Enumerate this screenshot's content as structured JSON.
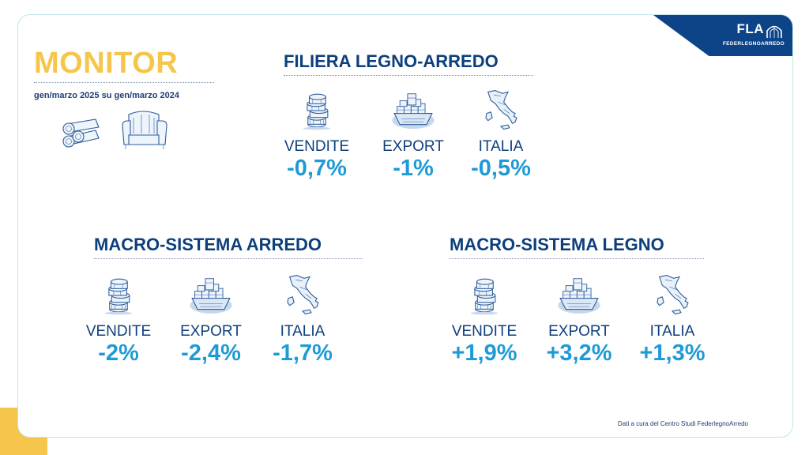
{
  "header": {
    "title": "MONITOR",
    "subtitle": "gen/marzo 2025 su gen/marzo 2024"
  },
  "logo": {
    "mark": "FLA",
    "name": "FEDERLEGNOARREDO"
  },
  "sections": [
    {
      "title": "FILIERA LEGNO-ARREDO",
      "metrics": [
        {
          "label": "VENDITE",
          "value": "-0,7%",
          "icon": "coins-stack-icon"
        },
        {
          "label": "EXPORT",
          "value": "-1%",
          "icon": "cargo-ship-icon"
        },
        {
          "label": "ITALIA",
          "value": "-0,5%",
          "icon": "italy-map-icon"
        }
      ]
    },
    {
      "title": "MACRO-SISTEMA ARREDO",
      "metrics": [
        {
          "label": "VENDITE",
          "value": "-2%",
          "icon": "coins-stack-icon"
        },
        {
          "label": "EXPORT",
          "value": "-2,4%",
          "icon": "cargo-ship-icon"
        },
        {
          "label": "ITALIA",
          "value": "-1,7%",
          "icon": "italy-map-icon"
        }
      ]
    },
    {
      "title": "MACRO-SISTEMA LEGNO",
      "metrics": [
        {
          "label": "VENDITE",
          "value": "+1,9%",
          "icon": "coins-stack-icon"
        },
        {
          "label": "EXPORT",
          "value": "+3,2%",
          "icon": "cargo-ship-icon"
        },
        {
          "label": "ITALIA",
          "value": "+1,3%",
          "icon": "italy-map-icon"
        }
      ]
    }
  ],
  "footer": {
    "credit": "Dati a cura del Centro Studi FederlegnoArredo"
  },
  "colors": {
    "brand_blue": "#0d3f7c",
    "value_blue": "#1e9ad6",
    "accent_yellow": "#f5c64b",
    "frame_border": "#bfe6e6"
  }
}
